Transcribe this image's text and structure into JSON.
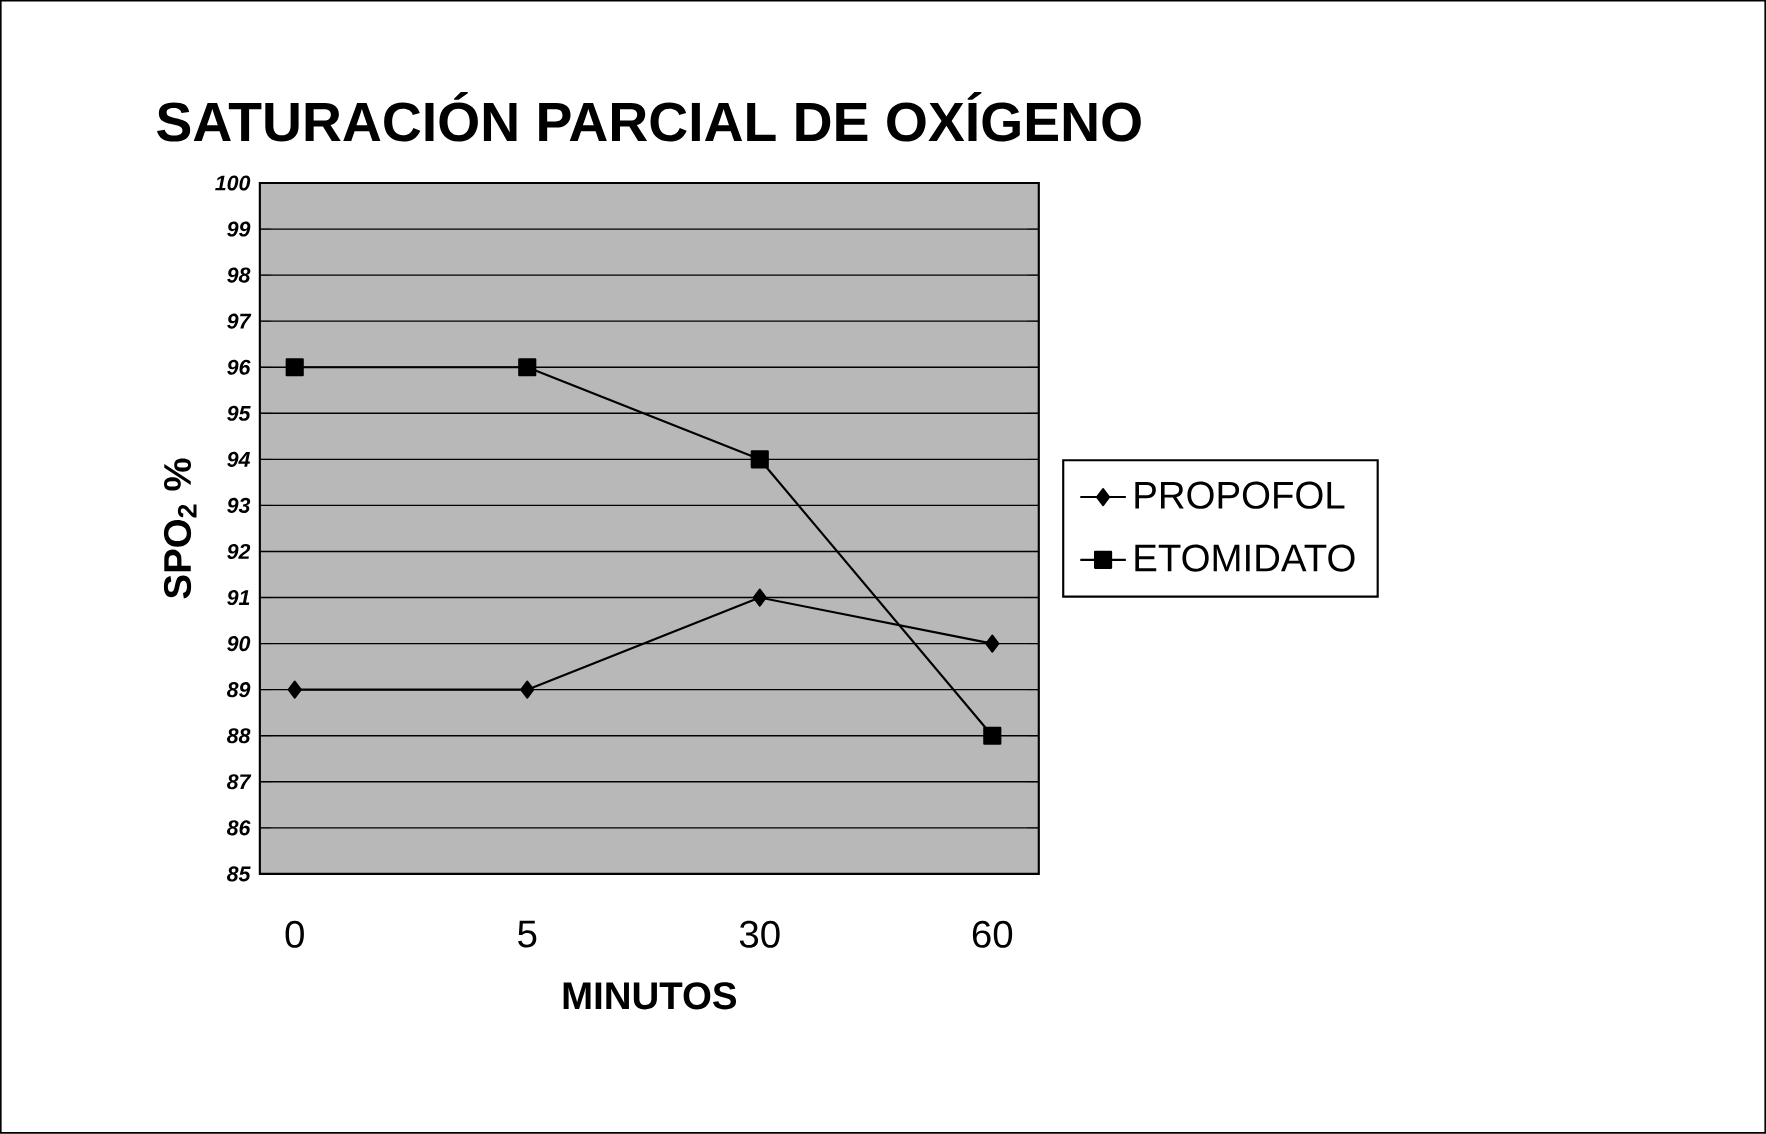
{
  "chart_data": {
    "type": "line",
    "title": "SATURACIÓN PARCIAL DE OXÍGENO",
    "xlabel": "MINUTOS",
    "ylabel": "SPO$_{2}$ %",
    "categories": [
      "0",
      "5",
      "30",
      "60"
    ],
    "series": [
      {
        "name": "PROPOFOL",
        "color": "#000000",
        "marker": "diamond",
        "values": [
          89,
          89,
          91,
          90
        ]
      },
      {
        "name": "ETOMIDATO",
        "color": "#000000",
        "marker": "square",
        "values": [
          96,
          96,
          94,
          88
        ]
      }
    ],
    "ylim": [
      85,
      100
    ],
    "yticks": [
      85,
      86,
      87,
      88,
      89,
      90,
      91,
      92,
      93,
      94,
      95,
      96,
      97,
      98,
      99,
      100
    ],
    "grid": "y",
    "legend": "right",
    "line_style": "solid"
  }
}
